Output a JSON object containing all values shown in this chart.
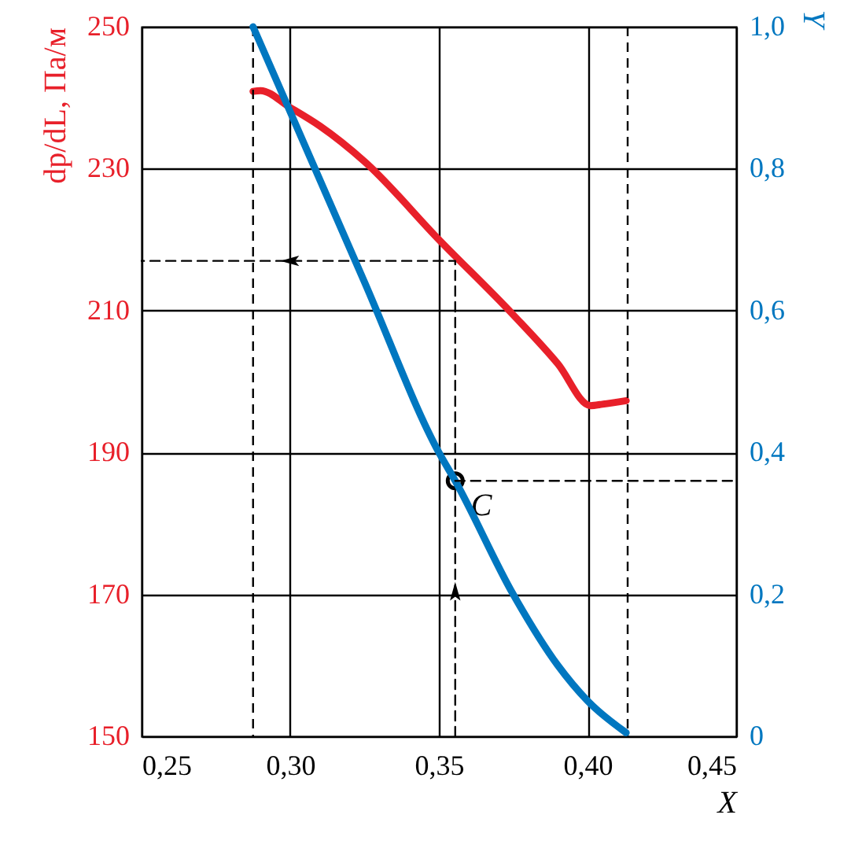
{
  "chart_data": {
    "type": "line",
    "xlabel": "X",
    "ylabel": "dp/dL, Па/м",
    "y2label": "Y",
    "xlim": [
      0.25,
      0.45
    ],
    "xticks": [
      {
        "value": 0.25,
        "label": "0,25"
      },
      {
        "value": 0.3,
        "label": "0,30"
      },
      {
        "value": 0.35,
        "label": "0,35"
      },
      {
        "value": 0.4,
        "label": "0,40"
      },
      {
        "value": 0.45,
        "label": "0,45"
      }
    ],
    "ylim": [
      150,
      250
    ],
    "yticks": [
      150,
      170,
      190,
      210,
      230,
      250
    ],
    "y2lim": [
      0,
      1
    ],
    "y2ticks": [
      0,
      {
        "value": 0.2,
        "label": "0,2"
      },
      {
        "value": 0.4,
        "label": "0,4"
      },
      {
        "value": 0.6,
        "label": "0,6"
      },
      {
        "value": 0.8,
        "label": "0,8"
      },
      {
        "value": 1,
        "label": "1,0"
      }
    ],
    "grid": true,
    "line_style": "solid",
    "series": [
      {
        "color": "#e8202a",
        "x": [
          0.2875,
          0.29,
          0.3,
          0.31,
          0.325,
          0.35,
          0.375,
          0.39,
          0.401,
          0.405,
          0.413
        ],
        "values": [
          240.9,
          241,
          238.6,
          236,
          231,
          220,
          209.4,
          202.5,
          196.6,
          196.8,
          197.3
        ]
      },
      {
        "color": "#0077c0",
        "axis": "y2",
        "x": [
          0.2875,
          0.3,
          0.325,
          0.35,
          0.3555,
          0.375,
          0.39,
          0.4,
          0.413
        ],
        "values": [
          1.0,
          0.88,
          0.64,
          0.4,
          0.36,
          0.2,
          0.1,
          0.05,
          0.005
        ]
      },
      {
        "color": "#000000",
        "line_style": "dashed",
        "x": [
          0.3555,
          0.3555,
          0.25
        ],
        "values": [
          150,
          217,
          217
        ]
      },
      {
        "color": "#000000",
        "line_style": "dashed",
        "axis": "y2",
        "x": [
          0.3555,
          0.45
        ],
        "values": [
          0.36,
          0.36
        ]
      }
    ],
    "ref_lines": [
      {
        "axis": "x",
        "value": 0.2875,
        "line_style": "dashed"
      },
      {
        "axis": "x",
        "value": 0.4135,
        "line_style": "dashed"
      }
    ],
    "annotations": [
      {
        "text": "C",
        "x": 0.3555,
        "y": 186
      }
    ]
  }
}
